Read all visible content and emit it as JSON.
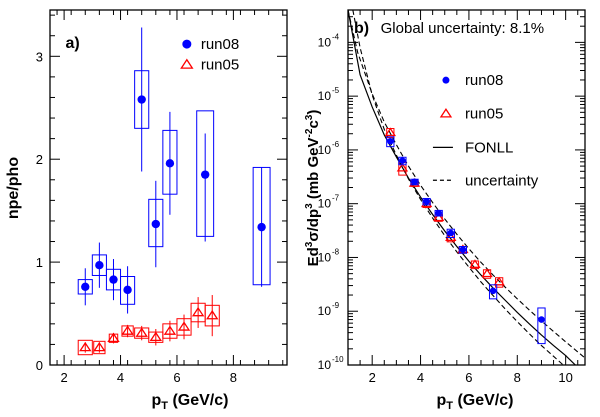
{
  "colors": {
    "run08": "#0000ff",
    "run05": "#ff0000",
    "axis": "#000000",
    "theory": "#000000"
  },
  "chart_data": [
    {
      "panel": "a",
      "type": "scatter",
      "tag": "a)",
      "xlabel_main": "p",
      "xlabel_sub": "T",
      "xlabel_unit": " (GeV/c)",
      "ylabel": "npe/pho",
      "xlim": [
        1.5,
        9.9
      ],
      "ylim": [
        0,
        3.45
      ],
      "xticks": [
        2,
        4,
        6,
        8
      ],
      "yticks": [
        0,
        1,
        2,
        3
      ],
      "legend_position": "top-right",
      "series": [
        {
          "name": "run08",
          "marker": "filled-circle",
          "color": "#0000ff",
          "points": [
            {
              "x": 2.75,
              "y": 0.76,
              "err_lo": 0.18,
              "err_hi": 0.18,
              "sys_lo": 0.07,
              "sys_hi": 0.07,
              "box_w": 0.25
            },
            {
              "x": 3.25,
              "y": 0.97,
              "err_lo": 0.22,
              "err_hi": 0.22,
              "sys_lo": 0.1,
              "sys_hi": 0.1,
              "box_w": 0.25
            },
            {
              "x": 3.75,
              "y": 0.83,
              "err_lo": 0.2,
              "err_hi": 0.2,
              "sys_lo": 0.1,
              "sys_hi": 0.1,
              "box_w": 0.25
            },
            {
              "x": 4.25,
              "y": 0.73,
              "err_lo": 0.23,
              "err_hi": 0.23,
              "sys_lo": 0.14,
              "sys_hi": 0.13,
              "box_w": 0.25
            },
            {
              "x": 4.75,
              "y": 2.58,
              "err_lo": 0.7,
              "err_hi": 0.7,
              "sys_lo": 0.28,
              "sys_hi": 0.28,
              "box_w": 0.25
            },
            {
              "x": 5.25,
              "y": 1.37,
              "err_lo": 0.42,
              "err_hi": 0.42,
              "sys_lo": 0.22,
              "sys_hi": 0.24,
              "box_w": 0.25
            },
            {
              "x": 5.75,
              "y": 1.96,
              "err_lo": 0.5,
              "err_hi": 0.5,
              "sys_lo": 0.3,
              "sys_hi": 0.32,
              "box_w": 0.25
            },
            {
              "x": 7.0,
              "y": 1.85,
              "err_lo": 0.65,
              "err_hi": 0.4,
              "sys_lo": 0.6,
              "sys_hi": 0.62,
              "box_w": 0.3
            },
            {
              "x": 9.0,
              "y": 1.34,
              "err_lo": 0.58,
              "err_hi": 0.58,
              "sys_lo": 0.56,
              "sys_hi": 0.58,
              "box_w": 0.3
            }
          ]
        },
        {
          "name": "run05",
          "marker": "open-triangle",
          "color": "#ff0000",
          "points": [
            {
              "x": 2.75,
              "y": 0.17,
              "err_lo": 0.05,
              "err_hi": 0.05,
              "sys_lo": 0.07,
              "sys_hi": 0.07,
              "box_w": 0.25
            },
            {
              "x": 3.25,
              "y": 0.17,
              "err_lo": 0.05,
              "err_hi": 0.05,
              "sys_lo": 0.06,
              "sys_hi": 0.06,
              "box_w": 0.2
            },
            {
              "x": 3.75,
              "y": 0.26,
              "err_lo": 0.05,
              "err_hi": 0.05,
              "sys_lo": 0.04,
              "sys_hi": 0.04,
              "box_w": 0.15
            },
            {
              "x": 4.25,
              "y": 0.33,
              "err_lo": 0.06,
              "err_hi": 0.06,
              "sys_lo": 0.05,
              "sys_hi": 0.05,
              "box_w": 0.2
            },
            {
              "x": 4.75,
              "y": 0.31,
              "err_lo": 0.07,
              "err_hi": 0.07,
              "sys_lo": 0.05,
              "sys_hi": 0.05,
              "box_w": 0.25
            },
            {
              "x": 5.25,
              "y": 0.27,
              "err_lo": 0.08,
              "err_hi": 0.08,
              "sys_lo": 0.05,
              "sys_hi": 0.05,
              "box_w": 0.25
            },
            {
              "x": 5.75,
              "y": 0.33,
              "err_lo": 0.1,
              "err_hi": 0.1,
              "sys_lo": 0.07,
              "sys_hi": 0.07,
              "box_w": 0.25
            },
            {
              "x": 6.25,
              "y": 0.37,
              "err_lo": 0.12,
              "err_hi": 0.12,
              "sys_lo": 0.08,
              "sys_hi": 0.08,
              "box_w": 0.25
            },
            {
              "x": 6.75,
              "y": 0.51,
              "err_lo": 0.15,
              "err_hi": 0.15,
              "sys_lo": 0.09,
              "sys_hi": 0.09,
              "box_w": 0.25
            },
            {
              "x": 7.25,
              "y": 0.48,
              "err_lo": 0.2,
              "err_hi": 0.2,
              "sys_lo": 0.1,
              "sys_hi": 0.1,
              "box_w": 0.25
            }
          ]
        }
      ]
    },
    {
      "panel": "b",
      "type": "scatter",
      "tag": "b)",
      "annotation": "Global uncertainty: 8.1%",
      "xlabel_main": "p",
      "xlabel_sub": "T",
      "xlabel_unit": " (GeV/c)",
      "ylabel_main": "Ed",
      "ylabel_sup": "3",
      "ylabel_mid": "σ/dp",
      "ylabel_sup2": "3",
      "ylabel_unit_a": " (mb GeV",
      "ylabel_unit_sup": "-2",
      "ylabel_unit_b": "c",
      "ylabel_unit_sup2": "3",
      "ylabel_unit_c": ")",
      "xlim": [
        1.0,
        10.8
      ],
      "ylim": [
        1e-10,
        0.0004
      ],
      "yscale": "log",
      "xticks": [
        2,
        4,
        6,
        8,
        10
      ],
      "yticks_exponents": [
        -10,
        -9,
        -8,
        -7,
        -6,
        -5,
        -4
      ],
      "legend_position": "top-right",
      "series": [
        {
          "name": "run08",
          "marker": "filled-circle",
          "color": "#0000ff",
          "points": [
            {
              "x": 2.75,
              "y": 1.45e-06,
              "sys_lo": 3e-07,
              "sys_hi": 3e-07,
              "box_w": 0.15
            },
            {
              "x": 3.25,
              "y": 6.3e-07,
              "sys_lo": 1e-07,
              "sys_hi": 1e-07,
              "box_w": 0.15
            },
            {
              "x": 3.75,
              "y": 2.55e-07,
              "sys_lo": 3e-08,
              "sys_hi": 3e-08,
              "box_w": 0.15
            },
            {
              "x": 4.25,
              "y": 1.1e-07,
              "sys_lo": 1.5e-08,
              "sys_hi": 1.5e-08,
              "box_w": 0.15
            },
            {
              "x": 4.75,
              "y": 6.7e-08,
              "sys_lo": 8e-09,
              "sys_hi": 8e-09,
              "box_w": 0.15
            },
            {
              "x": 5.25,
              "y": 2.85e-08,
              "sys_lo": 5e-09,
              "sys_hi": 5e-09,
              "box_w": 0.15
            },
            {
              "x": 5.75,
              "y": 1.4e-08,
              "sys_lo": 2e-09,
              "sys_hi": 2e-09,
              "box_w": 0.15
            },
            {
              "x": 7.0,
              "y": 2.4e-09,
              "sys_lo": 7e-10,
              "sys_hi": 7e-10,
              "box_w": 0.15
            },
            {
              "x": 9.0,
              "y": 7e-10,
              "sys_lo": 4.5e-10,
              "sys_hi": 4.5e-10,
              "box_w": 0.15
            }
          ]
        },
        {
          "name": "run05",
          "marker": "open-triangle",
          "color": "#ff0000",
          "points": [
            {
              "x": 2.75,
              "y": 2.1e-06,
              "sys_lo": 4e-07,
              "sys_hi": 4e-07,
              "box_w": 0.15
            },
            {
              "x": 3.25,
              "y": 4.6e-07,
              "sys_lo": 1.2e-07,
              "sys_hi": 1.2e-07,
              "box_w": 0.15
            },
            {
              "x": 3.75,
              "y": 2.4e-07,
              "sys_lo": 3e-08,
              "sys_hi": 3e-08,
              "box_w": 0.15
            },
            {
              "x": 4.25,
              "y": 1e-07,
              "sys_lo": 1.5e-08,
              "sys_hi": 1.5e-08,
              "box_w": 0.15
            },
            {
              "x": 4.75,
              "y": 5.5e-08,
              "sys_lo": 8e-09,
              "sys_hi": 8e-09,
              "box_w": 0.15
            },
            {
              "x": 5.25,
              "y": 2.35e-08,
              "sys_lo": 4e-09,
              "sys_hi": 4e-09,
              "box_w": 0.15
            },
            {
              "x": 5.75,
              "y": 1.4e-08,
              "sys_lo": 2e-09,
              "sys_hi": 2e-09,
              "box_w": 0.15
            },
            {
              "x": 6.25,
              "y": 7.4e-09,
              "sys_lo": 1.2e-09,
              "sys_hi": 1.2e-09,
              "box_w": 0.15
            },
            {
              "x": 6.75,
              "y": 5e-09,
              "sys_lo": 9e-10,
              "sys_hi": 9e-10,
              "box_w": 0.15
            },
            {
              "x": 7.25,
              "y": 3.5e-09,
              "sys_lo": 7e-10,
              "sys_hi": 7e-10,
              "box_w": 0.15
            }
          ]
        },
        {
          "name": "FONLL",
          "style": "solid-line",
          "color": "#000000",
          "points": [
            {
              "x": 1.0,
              "y": 0.0004
            },
            {
              "x": 1.5,
              "y": 2.5e-05
            },
            {
              "x": 2.0,
              "y": 6.3e-06
            },
            {
              "x": 2.5,
              "y": 1.9e-06
            },
            {
              "x": 3.0,
              "y": 7.4e-07
            },
            {
              "x": 3.5,
              "y": 3e-07
            },
            {
              "x": 4.0,
              "y": 1.33e-07
            },
            {
              "x": 4.5,
              "y": 6.3e-08
            },
            {
              "x": 5.0,
              "y": 3.1e-08
            },
            {
              "x": 5.5,
              "y": 1.6e-08
            },
            {
              "x": 6.0,
              "y": 8.5e-09
            },
            {
              "x": 6.5,
              "y": 4.7e-09
            },
            {
              "x": 7.0,
              "y": 2.7e-09
            },
            {
              "x": 7.5,
              "y": 1.6e-09
            },
            {
              "x": 8.0,
              "y": 9.5e-10
            },
            {
              "x": 8.5,
              "y": 5.8e-10
            },
            {
              "x": 9.0,
              "y": 3.6e-10
            },
            {
              "x": 9.5,
              "y": 2.3e-10
            },
            {
              "x": 10.0,
              "y": 1.5e-10
            },
            {
              "x": 10.4,
              "y": 1e-10
            }
          ]
        },
        {
          "name": "uncertainty",
          "style": "dashed-band",
          "color": "#000000",
          "upper": [
            {
              "x": 1.0,
              "y": 0.0004
            },
            {
              "x": 1.4,
              "y": 6.5e-05
            },
            {
              "x": 2.0,
              "y": 1.1e-05
            },
            {
              "x": 2.5,
              "y": 3.3e-06
            },
            {
              "x": 3.0,
              "y": 1.25e-06
            },
            {
              "x": 3.5,
              "y": 5e-07
            },
            {
              "x": 4.0,
              "y": 2.2e-07
            },
            {
              "x": 4.5,
              "y": 1.05e-07
            },
            {
              "x": 5.0,
              "y": 5.2e-08
            },
            {
              "x": 5.5,
              "y": 2.7e-08
            },
            {
              "x": 6.0,
              "y": 1.45e-08
            },
            {
              "x": 6.5,
              "y": 8.1e-09
            },
            {
              "x": 7.0,
              "y": 4.7e-09
            },
            {
              "x": 7.5,
              "y": 2.8e-09
            },
            {
              "x": 8.0,
              "y": 1.7e-09
            },
            {
              "x": 8.5,
              "y": 1.05e-09
            },
            {
              "x": 9.0,
              "y": 6.6e-10
            },
            {
              "x": 9.5,
              "y": 4.2e-10
            },
            {
              "x": 10.0,
              "y": 2.7e-10
            },
            {
              "x": 10.5,
              "y": 1.75e-10
            },
            {
              "x": 10.8,
              "y": 1.35e-10
            }
          ],
          "lower": [
            {
              "x": 1.2,
              "y": 0.0004
            },
            {
              "x": 1.5,
              "y": 8e-05
            },
            {
              "x": 2.0,
              "y": 1.05e-05
            },
            {
              "x": 2.5,
              "y": 2.4e-06
            },
            {
              "x": 3.0,
              "y": 8e-07
            },
            {
              "x": 3.5,
              "y": 2.9e-07
            },
            {
              "x": 4.0,
              "y": 1.2e-07
            },
            {
              "x": 4.5,
              "y": 5.4e-08
            },
            {
              "x": 5.0,
              "y": 2.55e-08
            },
            {
              "x": 5.5,
              "y": 1.27e-08
            },
            {
              "x": 6.0,
              "y": 6.6e-09
            },
            {
              "x": 6.5,
              "y": 3.5e-09
            },
            {
              "x": 7.0,
              "y": 1.95e-09
            },
            {
              "x": 7.5,
              "y": 1.1e-09
            },
            {
              "x": 8.0,
              "y": 6.4e-10
            },
            {
              "x": 8.5,
              "y": 3.8e-10
            },
            {
              "x": 9.0,
              "y": 2.3e-10
            },
            {
              "x": 9.5,
              "y": 1.45e-10
            },
            {
              "x": 9.9,
              "y": 1e-10
            }
          ]
        }
      ]
    }
  ]
}
